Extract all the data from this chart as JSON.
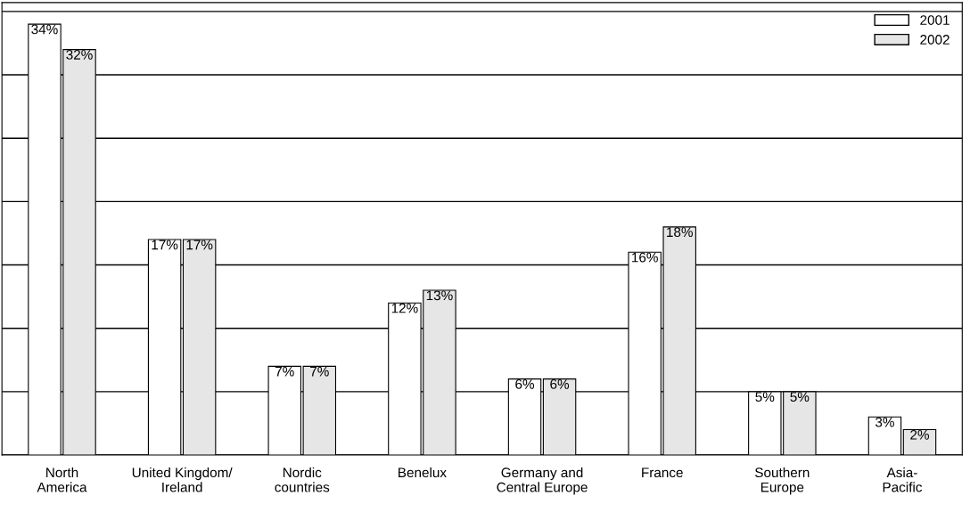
{
  "chart_data": {
    "type": "bar",
    "categories": [
      "North\nAmerica",
      "United Kingdom/\nIreland",
      "Nordic\ncountries",
      "Benelux",
      "Germany and\nCentral Europe",
      "France",
      "Southern\nEurope",
      "Asia-\nPacific"
    ],
    "series": [
      {
        "name": "2001",
        "color": "#ffffff",
        "values": [
          34,
          17,
          7,
          12,
          6,
          16,
          5,
          3
        ],
        "value_labels": [
          "34%",
          "17%",
          "7%",
          "12%",
          "6%",
          "16%",
          "5%",
          "3%"
        ]
      },
      {
        "name": "2002",
        "color": "#e6e6e6",
        "values": [
          32,
          17,
          7,
          13,
          6,
          18,
          5,
          2
        ],
        "value_labels": [
          "32%",
          "17%",
          "7%",
          "13%",
          "6%",
          "18%",
          "5%",
          "2%"
        ]
      }
    ],
    "grid": "y",
    "legend": "top right",
    "tick_labels": "x"
  }
}
